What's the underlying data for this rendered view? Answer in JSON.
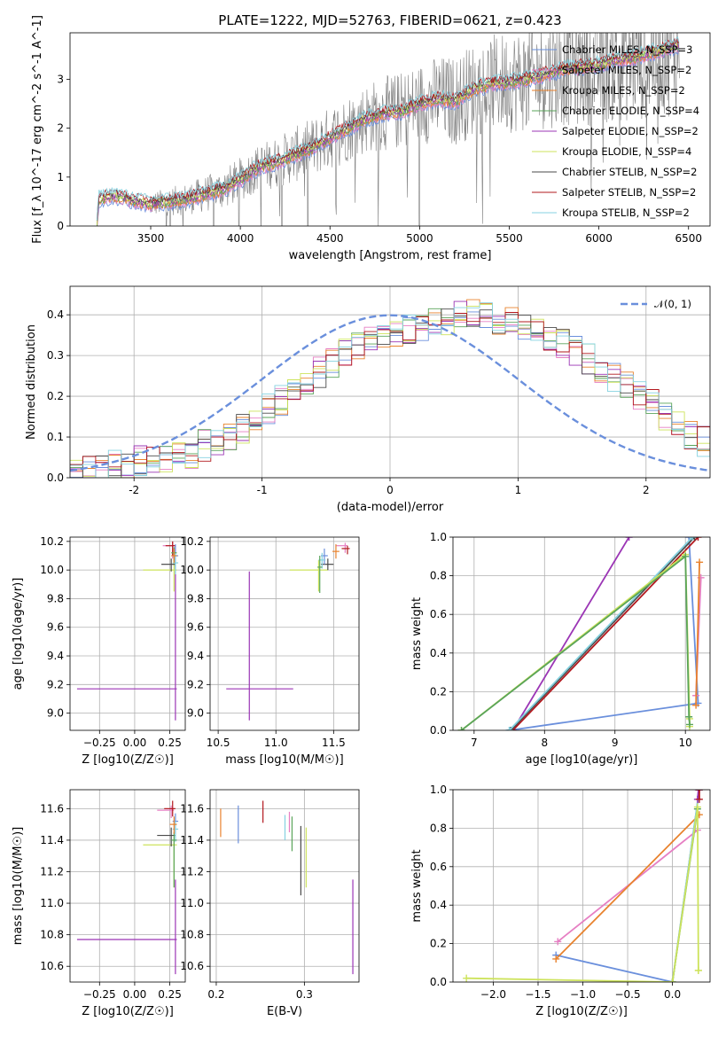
{
  "chart_data": [
    {
      "id": "spectrum",
      "type": "line",
      "title": "PLATE=1222, MJD=52763, FIBERID=0621, z=0.423",
      "xlabel": "wavelength [Angstrom, rest frame]",
      "ylabel": "Flux [f_λ 10^-17 erg cm^-2 s^-1 A^-1]",
      "xlim": [
        3050,
        6620
      ],
      "ylim": [
        0,
        3.95
      ],
      "xticks": [
        3500,
        4000,
        4500,
        5000,
        5500,
        6000,
        6500
      ],
      "yticks": [
        0,
        1,
        2,
        3
      ],
      "grid": false,
      "legend_position": "upper right",
      "observed_color": "#808080",
      "observed_range": [
        3500,
        6450
      ],
      "model_range": [
        3200,
        6450
      ],
      "continuum_points": [
        [
          3200,
          0.0
        ],
        [
          3210,
          0.55
        ],
        [
          3300,
          0.62
        ],
        [
          3400,
          0.52
        ],
        [
          3500,
          0.45
        ],
        [
          3600,
          0.5
        ],
        [
          3700,
          0.55
        ],
        [
          3800,
          0.65
        ],
        [
          3900,
          0.75
        ],
        [
          4000,
          0.95
        ],
        [
          4100,
          1.2
        ],
        [
          4200,
          1.3
        ],
        [
          4300,
          1.45
        ],
        [
          4400,
          1.6
        ],
        [
          4500,
          1.8
        ],
        [
          4600,
          2.0
        ],
        [
          4700,
          2.2
        ],
        [
          4800,
          2.3
        ],
        [
          4900,
          2.35
        ],
        [
          5000,
          2.5
        ],
        [
          5100,
          2.6
        ],
        [
          5200,
          2.55
        ],
        [
          5300,
          2.8
        ],
        [
          5400,
          2.9
        ],
        [
          5500,
          2.95
        ],
        [
          5600,
          3.0
        ],
        [
          5700,
          3.1
        ],
        [
          5800,
          3.2
        ],
        [
          5900,
          3.25
        ],
        [
          6000,
          3.3
        ],
        [
          6100,
          3.4
        ],
        [
          6200,
          3.45
        ],
        [
          6300,
          3.55
        ],
        [
          6400,
          3.65
        ],
        [
          6450,
          3.7
        ]
      ],
      "series": [
        {
          "name": "Chabrier MILES, N_SSP=3",
          "color": "#6a8fdc"
        },
        {
          "name": "Salpeter MILES, N_SSP=2",
          "color": "#e67fc3"
        },
        {
          "name": "Kroupa MILES, N_SSP=2",
          "color": "#e8822d"
        },
        {
          "name": "Chabrier ELODIE, N_SSP=4",
          "color": "#5aa45a"
        },
        {
          "name": "Salpeter ELODIE, N_SSP=2",
          "color": "#9b35b5"
        },
        {
          "name": "Kroupa ELODIE, N_SSP=4",
          "color": "#cde35b"
        },
        {
          "name": "Chabrier STELIB, N_SSP=2",
          "color": "#4a4a4a"
        },
        {
          "name": "Salpeter STELIB, N_SSP=2",
          "color": "#b2181e"
        },
        {
          "name": "Kroupa STELIB, N_SSP=2",
          "color": "#85d2e0"
        }
      ]
    },
    {
      "id": "residuals",
      "type": "histogram",
      "xlabel": "(data-model)/error",
      "ylabel": "Normed distribution",
      "xlim": [
        -2.5,
        2.5
      ],
      "ylim": [
        0,
        0.47
      ],
      "xticks": [
        -2,
        -1,
        0,
        1,
        2
      ],
      "yticks": [
        0.0,
        0.1,
        0.2,
        0.3,
        0.4
      ],
      "grid": true,
      "legend_position": "upper right",
      "gaussian": {
        "label": "𝒩(0, 1)",
        "mean": 0,
        "sigma": 1,
        "color": "#6a8fdc"
      },
      "bin_width": 0.1,
      "bins_left_edge": -2.5,
      "base_values": [
        0.02,
        0.02,
        0.02,
        0.03,
        0.03,
        0.04,
        0.04,
        0.05,
        0.06,
        0.06,
        0.08,
        0.09,
        0.1,
        0.12,
        0.14,
        0.17,
        0.19,
        0.22,
        0.24,
        0.26,
        0.28,
        0.3,
        0.32,
        0.34,
        0.35,
        0.36,
        0.36,
        0.37,
        0.38,
        0.39,
        0.4,
        0.4,
        0.39,
        0.39,
        0.38,
        0.37,
        0.36,
        0.35,
        0.33,
        0.31,
        0.29,
        0.27,
        0.25,
        0.22,
        0.2,
        0.18,
        0.15,
        0.13,
        0.11,
        0.09,
        0.08,
        0.07,
        0.06,
        0.05,
        0.05,
        0.04,
        0.04,
        0.03,
        0.03,
        0.03,
        0.03,
        0.02,
        0.02,
        0.02,
        0.02,
        0.02,
        0.02,
        0.02,
        0.02,
        0.02
      ],
      "spread": 0.04
    },
    {
      "id": "age_vs_Z",
      "type": "errorbar",
      "xlabel": "Z [log10(Z/Z☉)]",
      "ylabel": "age  [log10(age/yr)]",
      "xlim": [
        -0.46,
        0.36
      ],
      "ylim": [
        8.88,
        10.23
      ],
      "xticks": [
        -0.25,
        0.0,
        0.25
      ],
      "xticklabels": [
        "−0.25",
        "0.00",
        "0.25"
      ],
      "yticks": [
        9.0,
        9.2,
        9.4,
        9.6,
        9.8,
        10.0,
        10.2
      ],
      "grid": true,
      "points": [
        {
          "color": "#9b35b5",
          "x": 0.29,
          "xerr": [
            0.7,
            0.01
          ],
          "y": 9.17,
          "yerr": [
            0.22,
            1.0
          ]
        },
        {
          "color": "#cde35b",
          "x": 0.28,
          "xerr": [
            0.22,
            0.02
          ],
          "y": 10.0,
          "yerr": [
            0.15,
            0.07
          ]
        },
        {
          "color": "#e67fc3",
          "x": 0.27,
          "xerr": [
            0.07,
            0.02
          ],
          "y": 10.17,
          "yerr": [
            0.09,
            0.03
          ]
        },
        {
          "color": "#b2181e",
          "x": 0.27,
          "xerr": [
            0.05,
            0.02
          ],
          "y": 10.17,
          "yerr": [
            0.07,
            0.03
          ]
        },
        {
          "color": "#4a4a4a",
          "x": 0.26,
          "xerr": [
            0.07,
            0.03
          ],
          "y": 10.04,
          "yerr": [
            0.05,
            0.04
          ]
        },
        {
          "color": "#6a8fdc",
          "x": 0.29,
          "xerr": [
            0.02,
            0.02
          ],
          "y": 10.1,
          "yerr": [
            0.08,
            0.08
          ]
        },
        {
          "color": "#85d2e0",
          "x": 0.29,
          "xerr": [
            0.02,
            0.02
          ],
          "y": 10.05,
          "yerr": [
            0.08,
            0.07
          ]
        },
        {
          "color": "#5aa45a",
          "x": 0.28,
          "xerr": [
            0.02,
            0.02
          ],
          "y": 10.12,
          "yerr": [
            0.06,
            0.04
          ]
        },
        {
          "color": "#e8822d",
          "x": 0.28,
          "xerr": [
            0.02,
            0.02
          ],
          "y": 10.1,
          "yerr": [
            0.05,
            0.05
          ]
        }
      ]
    },
    {
      "id": "age_vs_mass",
      "type": "errorbar",
      "xlabel": "mass [log10(M/M☉)]",
      "ylabel": "",
      "xlim": [
        10.43,
        11.72
      ],
      "ylim": [
        8.88,
        10.23
      ],
      "xticks": [
        10.5,
        11.0,
        11.5
      ],
      "yticks": [
        9.0,
        9.2,
        9.4,
        9.6,
        9.8,
        10.0,
        10.2
      ],
      "grid": true,
      "points": [
        {
          "color": "#9b35b5",
          "x": 10.77,
          "xerr": [
            0.2,
            0.38
          ],
          "y": 9.17,
          "yerr": [
            0.22,
            0.82
          ]
        },
        {
          "color": "#cde35b",
          "x": 11.37,
          "xerr": [
            0.25,
            0.08
          ],
          "y": 10.0,
          "yerr": [
            0.15,
            0.07
          ]
        },
        {
          "color": "#e67fc3",
          "x": 11.6,
          "xerr": [
            0.08,
            0.02
          ],
          "y": 10.17,
          "yerr": [
            0.05,
            0.02
          ]
        },
        {
          "color": "#b2181e",
          "x": 11.62,
          "xerr": [
            0.05,
            0.02
          ],
          "y": 10.15,
          "yerr": [
            0.04,
            0.02
          ]
        },
        {
          "color": "#4a4a4a",
          "x": 11.45,
          "xerr": [
            0.06,
            0.05
          ],
          "y": 10.04,
          "yerr": [
            0.04,
            0.04
          ]
        },
        {
          "color": "#6a8fdc",
          "x": 11.42,
          "xerr": [
            0.03,
            0.03
          ],
          "y": 10.1,
          "yerr": [
            0.06,
            0.05
          ]
        },
        {
          "color": "#85d2e0",
          "x": 11.4,
          "xerr": [
            0.03,
            0.03
          ],
          "y": 10.07,
          "yerr": [
            0.06,
            0.05
          ]
        },
        {
          "color": "#5aa45a",
          "x": 11.38,
          "xerr": [
            0.02,
            0.02
          ],
          "y": 10.02,
          "yerr": [
            0.18,
            0.08
          ]
        },
        {
          "color": "#e8822d",
          "x": 11.52,
          "xerr": [
            0.03,
            0.03
          ],
          "y": 10.13,
          "yerr": [
            0.05,
            0.05
          ]
        }
      ]
    },
    {
      "id": "mw_vs_age",
      "type": "line",
      "xlabel": "age  [log10(age/yr)]",
      "ylabel": "mass weight",
      "xlim": [
        6.7,
        10.35
      ],
      "ylim": [
        0,
        1
      ],
      "xticks": [
        7,
        8,
        9,
        10
      ],
      "yticks": [
        0.0,
        0.2,
        0.4,
        0.6,
        0.8,
        1.0
      ],
      "grid": true,
      "series": [
        {
          "color": "#6a8fdc",
          "x": [
            7.5,
            10.18,
            10.05
          ],
          "y": [
            0.0,
            0.14,
            1.0
          ]
        },
        {
          "color": "#9b35b5",
          "x": [
            7.55,
            9.2
          ],
          "y": [
            0.0,
            1.0
          ]
        },
        {
          "color": "#b2181e",
          "x": [
            7.55,
            10.18
          ],
          "y": [
            0.0,
            1.0
          ]
        },
        {
          "color": "#4a4a4a",
          "x": [
            7.52,
            10.13
          ],
          "y": [
            0.0,
            1.0
          ]
        },
        {
          "color": "#85d2e0",
          "x": [
            7.5,
            10.1
          ],
          "y": [
            0.0,
            1.0
          ]
        },
        {
          "color": "#cde35b",
          "x": [
            6.82,
            10.0,
            10.06,
            10.06
          ],
          "y": [
            0.0,
            0.91,
            0.06,
            0.02
          ]
        },
        {
          "color": "#5aa45a",
          "x": [
            6.82,
            10.0,
            10.05,
            10.06
          ],
          "y": [
            0.0,
            0.9,
            0.07,
            0.03
          ]
        },
        {
          "color": "#e67fc3",
          "x": [
            10.15,
            10.22
          ],
          "y": [
            0.18,
            0.79
          ]
        },
        {
          "color": "#e8822d",
          "x": [
            10.15,
            10.2
          ],
          "y": [
            0.13,
            0.87
          ]
        }
      ]
    },
    {
      "id": "mass_vs_Z",
      "type": "errorbar",
      "xlabel": "Z [log10(Z/Z☉)]",
      "ylabel": "mass [log10(M/M☉)]",
      "xlim": [
        -0.46,
        0.36
      ],
      "ylim": [
        10.5,
        11.72
      ],
      "xticks": [
        -0.25,
        0.0,
        0.25
      ],
      "xticklabels": [
        "−0.25",
        "0.00",
        "0.25"
      ],
      "yticks": [
        10.6,
        10.8,
        11.0,
        11.2,
        11.4,
        11.6
      ],
      "grid": true,
      "points": [
        {
          "color": "#9b35b5",
          "x": 0.29,
          "xerr": [
            0.7,
            0.01
          ],
          "y": 10.77,
          "yerr": [
            0.22,
            0.38
          ]
        },
        {
          "color": "#cde35b",
          "x": 0.28,
          "xerr": [
            0.22,
            0.02
          ],
          "y": 11.37,
          "yerr": [
            0.27,
            0.05
          ]
        },
        {
          "color": "#e67fc3",
          "x": 0.26,
          "xerr": [
            0.1,
            0.02
          ],
          "y": 11.59,
          "yerr": [
            0.05,
            0.03
          ]
        },
        {
          "color": "#b2181e",
          "x": 0.27,
          "xerr": [
            0.06,
            0.02
          ],
          "y": 11.6,
          "yerr": [
            0.05,
            0.05
          ]
        },
        {
          "color": "#4a4a4a",
          "x": 0.26,
          "xerr": [
            0.1,
            0.03
          ],
          "y": 11.43,
          "yerr": [
            0.07,
            0.05
          ]
        },
        {
          "color": "#6a8fdc",
          "x": 0.29,
          "xerr": [
            0.02,
            0.02
          ],
          "y": 11.52,
          "yerr": [
            0.08,
            0.05
          ]
        },
        {
          "color": "#85d2e0",
          "x": 0.29,
          "xerr": [
            0.02,
            0.02
          ],
          "y": 11.47,
          "yerr": [
            0.08,
            0.05
          ]
        },
        {
          "color": "#5aa45a",
          "x": 0.28,
          "xerr": [
            0.02,
            0.02
          ],
          "y": 11.4,
          "yerr": [
            0.3,
            0.05
          ]
        },
        {
          "color": "#e8822d",
          "x": 0.28,
          "xerr": [
            0.03,
            0.02
          ],
          "y": 11.5,
          "yerr": [
            0.06,
            0.05
          ]
        }
      ]
    },
    {
      "id": "mass_vs_ebv",
      "type": "errorbar",
      "xlabel": "E(B-V)",
      "ylabel": "",
      "xlim": [
        0.193,
        0.362
      ],
      "ylim": [
        10.5,
        11.72
      ],
      "xticks": [
        0.2,
        0.3
      ],
      "yticks": [
        10.6,
        10.8,
        11.0,
        11.2,
        11.4,
        11.6
      ],
      "grid": true,
      "points": [
        {
          "color": "#e8822d",
          "x": 0.205,
          "y": 11.52,
          "yerr": [
            0.1,
            0.08
          ]
        },
        {
          "color": "#6a8fdc",
          "x": 0.225,
          "y": 11.5,
          "yerr": [
            0.12,
            0.12
          ]
        },
        {
          "color": "#b2181e",
          "x": 0.253,
          "y": 11.58,
          "yerr": [
            0.07,
            0.07
          ]
        },
        {
          "color": "#85d2e0",
          "x": 0.278,
          "y": 11.48,
          "yerr": [
            0.08,
            0.08
          ]
        },
        {
          "color": "#e67fc3",
          "x": 0.283,
          "y": 11.53,
          "yerr": [
            0.08,
            0.05
          ]
        },
        {
          "color": "#5aa45a",
          "x": 0.286,
          "y": 11.45,
          "yerr": [
            0.12,
            0.1
          ]
        },
        {
          "color": "#4a4a4a",
          "x": 0.296,
          "y": 11.27,
          "yerr": [
            0.22,
            0.22
          ]
        },
        {
          "color": "#cde35b",
          "x": 0.302,
          "y": 11.3,
          "yerr": [
            0.2,
            0.18
          ]
        },
        {
          "color": "#9b35b5",
          "x": 0.355,
          "y": 10.85,
          "yerr": [
            0.3,
            0.3
          ]
        }
      ]
    },
    {
      "id": "mw_vs_Z",
      "type": "line",
      "xlabel": "Z [log10(Z/Z☉)]",
      "ylabel": "mass weight",
      "xlim": [
        -2.45,
        0.42
      ],
      "ylim": [
        0,
        1
      ],
      "xticks": [
        -2.0,
        -1.5,
        -1.0,
        -0.5,
        0.0
      ],
      "xticklabels": [
        "−2.0",
        "−1.5",
        "−1.0",
        "−0.5",
        "0.0"
      ],
      "yticks": [
        0.0,
        0.2,
        0.4,
        0.6,
        0.8,
        1.0
      ],
      "grid": true,
      "series": [
        {
          "color": "#6a8fdc",
          "x": [
            -1.3,
            0.0,
            0.3
          ],
          "y": [
            0.14,
            0.0,
            1.0
          ]
        },
        {
          "color": "#e67fc3",
          "x": [
            -1.28,
            0.28
          ],
          "y": [
            0.21,
            0.79
          ]
        },
        {
          "color": "#e8822d",
          "x": [
            -1.3,
            0.3
          ],
          "y": [
            0.12,
            0.87
          ]
        },
        {
          "color": "#85d2e0",
          "x": [
            0.0,
            0.3
          ],
          "y": [
            0.0,
            1.0
          ]
        },
        {
          "color": "#5aa45a",
          "x": [
            0.0,
            0.28
          ],
          "y": [
            0.0,
            0.9
          ]
        },
        {
          "color": "#9b35b5",
          "x": [
            0.28,
            0.29
          ],
          "y": [
            0.95,
            1.0
          ]
        },
        {
          "color": "#b2181e",
          "x": [
            0.3,
            0.3
          ],
          "y": [
            0.95,
            1.0
          ]
        },
        {
          "color": "#cde35b",
          "x": [
            -2.3,
            0.0,
            0.28,
            0.29,
            0.29
          ],
          "y": [
            0.02,
            0.0,
            0.91,
            0.06,
            0.06
          ]
        }
      ]
    }
  ]
}
